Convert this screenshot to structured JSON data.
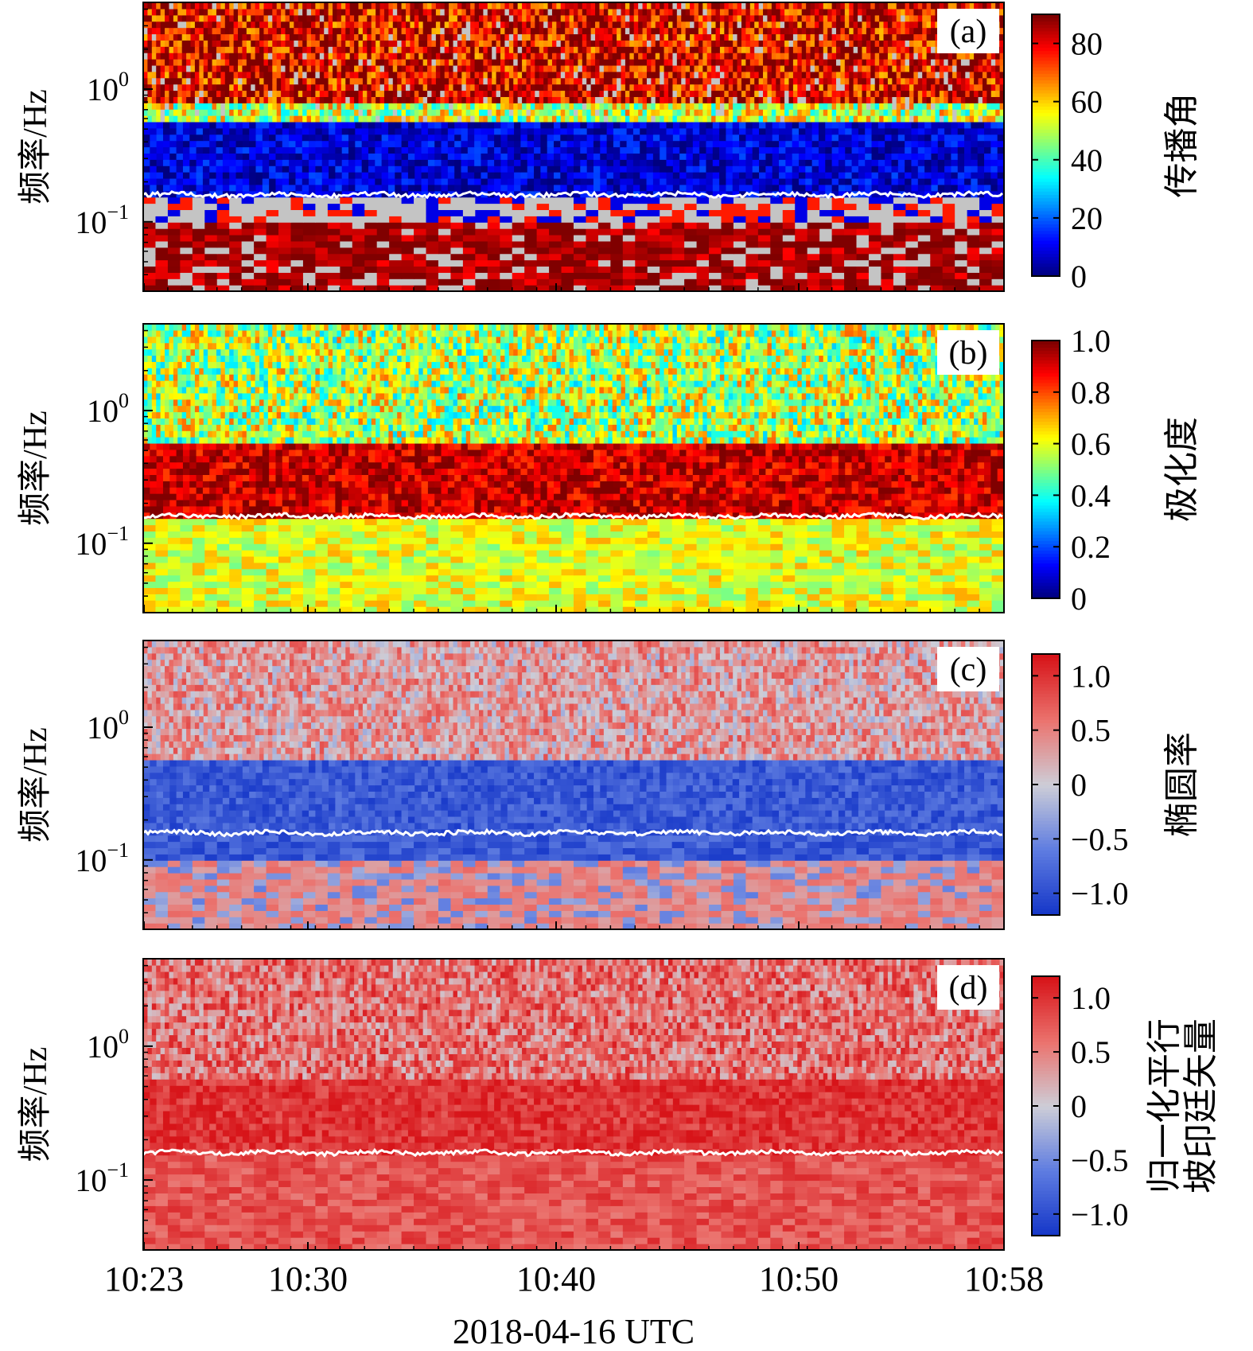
{
  "figure": {
    "xlabel": "2018-04-16 UTC",
    "xticks": [
      "10:23",
      "10:30",
      "10:40",
      "10:50",
      "10:58"
    ],
    "ylabel": "频率/Hz",
    "yticks": [
      {
        "base": "10",
        "exp": "0"
      },
      {
        "base": "10",
        "exp": "−1"
      }
    ]
  },
  "chart_data": [
    {
      "type": "heatmap",
      "panel": "(a)",
      "colorbar_label": [
        "传播角"
      ],
      "colorbar_ticks": [
        "0",
        "20",
        "40",
        "60",
        "80"
      ],
      "colormap": "jet",
      "vmin": 0,
      "vmax": 90,
      "x_range": [
        "10:23",
        "10:58"
      ],
      "yscale": "log",
      "ylim": [
        0.03,
        4.5
      ],
      "line_freq_hz": 0.16,
      "line_color": "#ffffff",
      "bands": [
        {
          "from_hz": 0.75,
          "to_hz": 4.5,
          "dominant_value": 80
        },
        {
          "from_hz": 0.55,
          "to_hz": 0.75,
          "dominant_value": 50
        },
        {
          "from_hz": 0.15,
          "to_hz": 0.55,
          "dominant_value": 8
        },
        {
          "from_hz": 0.1,
          "to_hz": 0.15,
          "dominant_value": "grey"
        },
        {
          "from_hz": 0.03,
          "to_hz": 0.1,
          "dominant_value": 85
        }
      ]
    },
    {
      "type": "heatmap",
      "panel": "(b)",
      "colorbar_label": [
        "极化度"
      ],
      "colorbar_ticks": [
        "0",
        "0.2",
        "0.4",
        "0.6",
        "0.8",
        "1.0"
      ],
      "colormap": "jet",
      "vmin": 0,
      "vmax": 1.0,
      "x_range": [
        "10:23",
        "10:58"
      ],
      "yscale": "log",
      "ylim": [
        0.03,
        4.5
      ],
      "line_freq_hz": 0.16,
      "line_color": "#ffffff",
      "bands": [
        {
          "from_hz": 0.55,
          "to_hz": 4.5,
          "dominant_value": 0.55
        },
        {
          "from_hz": 0.15,
          "to_hz": 0.55,
          "dominant_value": 0.92
        },
        {
          "from_hz": 0.03,
          "to_hz": 0.15,
          "dominant_value": 0.6
        }
      ]
    },
    {
      "type": "heatmap",
      "panel": "(c)",
      "colorbar_label": [
        "椭圆率"
      ],
      "colorbar_ticks": [
        "−1.0",
        "−0.5",
        "0",
        "0.5",
        "1.0"
      ],
      "colormap": "bwr",
      "vmin": -1.2,
      "vmax": 1.2,
      "x_range": [
        "10:23",
        "10:58"
      ],
      "yscale": "log",
      "ylim": [
        0.03,
        4.5
      ],
      "line_freq_hz": 0.16,
      "line_color": "#ffffff",
      "bands": [
        {
          "from_hz": 0.55,
          "to_hz": 4.5,
          "dominant_value": 0.3
        },
        {
          "from_hz": 0.1,
          "to_hz": 0.55,
          "dominant_value": -0.9
        },
        {
          "from_hz": 0.03,
          "to_hz": 0.1,
          "dominant_value": 0.4
        }
      ]
    },
    {
      "type": "heatmap",
      "panel": "(d)",
      "colorbar_label": [
        "归一化平行",
        "坡印廷矢量"
      ],
      "colorbar_ticks": [
        "−1.0",
        "−0.5",
        "0",
        "0.5",
        "1.0"
      ],
      "colormap": "bwr",
      "vmin": -1.2,
      "vmax": 1.2,
      "x_range": [
        "10:23",
        "10:58"
      ],
      "yscale": "log",
      "ylim": [
        0.03,
        4.5
      ],
      "line_freq_hz": 0.16,
      "line_color": "#ffffff",
      "bands": [
        {
          "from_hz": 0.55,
          "to_hz": 4.5,
          "dominant_value": 0.6
        },
        {
          "from_hz": 0.15,
          "to_hz": 0.55,
          "dominant_value": 1.0
        },
        {
          "from_hz": 0.03,
          "to_hz": 0.15,
          "dominant_value": 0.8
        }
      ]
    }
  ]
}
